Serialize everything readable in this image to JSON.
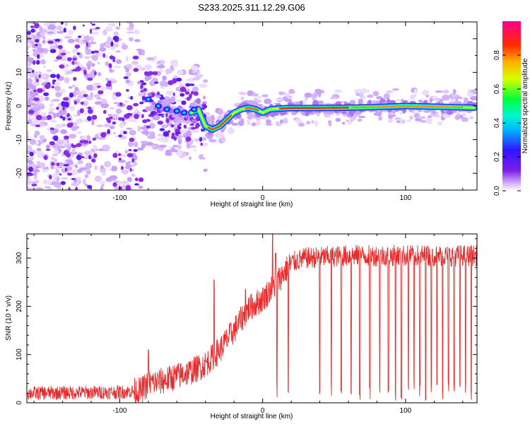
{
  "title": "S233.2025.311.12.29.G06",
  "colors": {
    "snr_line": "#e82a2a",
    "axis": "#000000",
    "colormap": [
      "#ffffff",
      "#e4cdfc",
      "#7b1fe6",
      "#3214ff",
      "#00e5ff",
      "#00ff5a",
      "#ffff00",
      "#ff8c00",
      "#ff0000",
      "#ff0080"
    ]
  },
  "chart_data": [
    {
      "type": "heatmap",
      "name": "spectrogram",
      "xlabel": "Height of straight line (km)",
      "ylabel": "Frequency (Hz)",
      "xlim": [
        -165,
        150
      ],
      "ylim": [
        -25,
        25
      ],
      "xticks": [
        -100,
        0,
        100
      ],
      "xtick_labels": [
        "-100",
        "0",
        "100"
      ],
      "yticks": [
        -20,
        -10,
        0,
        10,
        20
      ],
      "ytick_labels": [
        "-20",
        "-10",
        "0",
        "10",
        "20"
      ],
      "colorbar": {
        "label": "Normalized spectral amplitude",
        "range": [
          0.0,
          1.0
        ],
        "ticks": [
          0.0,
          0.2,
          0.4,
          0.6,
          0.8
        ],
        "tick_labels": [
          "0.0",
          "0.2",
          "0.4",
          "0.6",
          "0.8"
        ]
      },
      "signal_track": {
        "x": [
          -80,
          -70,
          -60,
          -50,
          -45,
          -40,
          -35,
          -30,
          -25,
          -20,
          -15,
          -10,
          -5,
          0,
          5,
          10,
          20,
          40,
          60,
          80,
          100,
          120,
          140,
          148
        ],
        "y": [
          2,
          0,
          -1,
          -2,
          -1,
          -6,
          -7,
          -6,
          -4,
          -2,
          -1,
          -0.5,
          -1,
          -2,
          -1,
          -0.8,
          -0.6,
          -0.6,
          -0.5,
          -0.3,
          0,
          -0.2,
          -0.4,
          -0.5
        ]
      }
    },
    {
      "type": "line",
      "name": "snr",
      "xlabel": "Height of straight line (km)",
      "ylabel": "SNR (10 * v/v)",
      "xlim": [
        -165,
        150
      ],
      "ylim": [
        0,
        350
      ],
      "xticks": [
        -100,
        0,
        100
      ],
      "xtick_labels": [
        "-100",
        "0",
        "100"
      ],
      "yticks": [
        0,
        100,
        200,
        300
      ],
      "ytick_labels": [
        "0",
        "100",
        "200",
        "300"
      ],
      "envelope": {
        "x": [
          -165,
          -100,
          -85,
          -80,
          -70,
          -60,
          -50,
          -40,
          -30,
          -20,
          -10,
          0,
          10,
          20,
          30,
          60,
          100,
          150
        ],
        "y": [
          20,
          22,
          25,
          40,
          45,
          55,
          65,
          80,
          110,
          150,
          195,
          215,
          250,
          290,
          300,
          305,
          305,
          305
        ]
      },
      "spikes": [
        {
          "x": -80,
          "y": 110
        },
        {
          "x": -34,
          "y": 255
        },
        {
          "x": -12,
          "y": 235
        },
        {
          "x": 7,
          "y": 350
        },
        {
          "x": 9,
          "y": 310
        }
      ],
      "dropouts_x": [
        10,
        18,
        40,
        48,
        55,
        62,
        68,
        75,
        82,
        88,
        93,
        97,
        102,
        106,
        110,
        114,
        118,
        122,
        126,
        130,
        134,
        138,
        142,
        146
      ]
    }
  ]
}
